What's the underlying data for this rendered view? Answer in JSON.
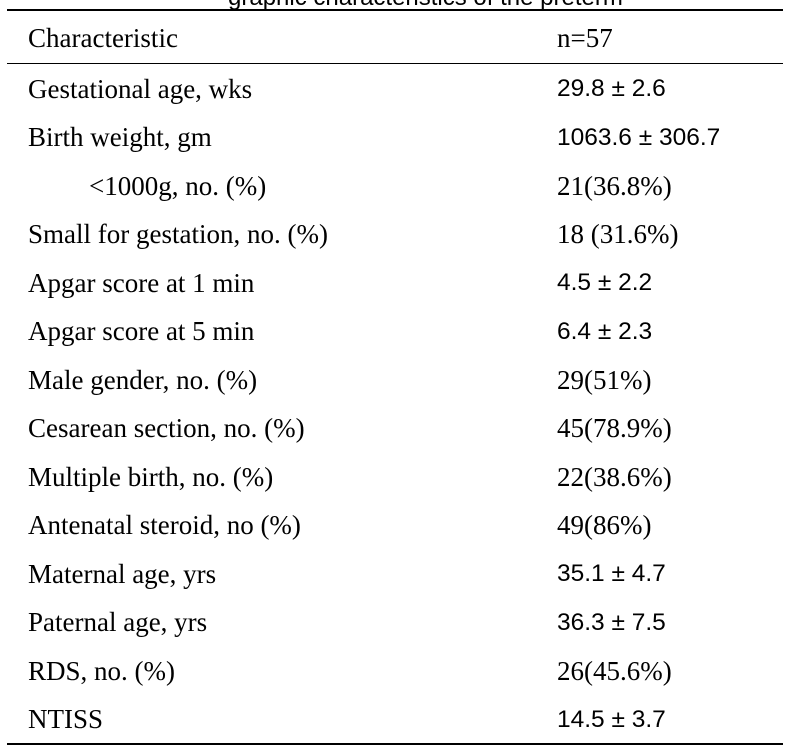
{
  "table": {
    "columns": [
      "Characteristic",
      "n=57"
    ],
    "rows": [
      {
        "label": "Gestational age, wks",
        "value": "29.8 ± 2.6",
        "indent": false,
        "value_font": "sans"
      },
      {
        "label": "Birth weight, gm",
        "value": "1063.6 ± 306.7",
        "indent": false,
        "value_font": "sans"
      },
      {
        "label": "<1000g, no. (%)",
        "value": "21(36.8%)",
        "indent": true,
        "value_font": "serif"
      },
      {
        "label": "Small for gestation, no. (%)",
        "value": "18 (31.6%)",
        "indent": false,
        "value_font": "serif"
      },
      {
        "label": "Apgar score at 1 min",
        "value": "4.5 ± 2.2",
        "indent": false,
        "value_font": "sans"
      },
      {
        "label": "Apgar score at 5 min",
        "value": "6.4 ± 2.3",
        "indent": false,
        "value_font": "sans"
      },
      {
        "label": "Male gender, no. (%)",
        "value": "29(51%)",
        "indent": false,
        "value_font": "serif"
      },
      {
        "label": "Cesarean section, no. (%)",
        "value": "45(78.9%)",
        "indent": false,
        "value_font": "serif"
      },
      {
        "label": "Multiple birth, no. (%)",
        "value": "22(38.6%)",
        "indent": false,
        "value_font": "serif"
      },
      {
        "label": "Antenatal steroid, no (%)",
        "value": "49(86%)",
        "indent": false,
        "value_font": "serif"
      },
      {
        "label": "Maternal age, yrs",
        "value": "35.1 ± 4.7",
        "indent": false,
        "value_font": "sans"
      },
      {
        "label": "Paternal age, yrs",
        "value": "36.3 ± 7.5",
        "indent": false,
        "value_font": "sans"
      },
      {
        "label": "RDS, no. (%)",
        "value": "26(45.6%)",
        "indent": false,
        "value_font": "serif"
      },
      {
        "label": "NTISS",
        "value": "14.5 ± 3.7",
        "indent": false,
        "value_font": "sans"
      }
    ]
  }
}
